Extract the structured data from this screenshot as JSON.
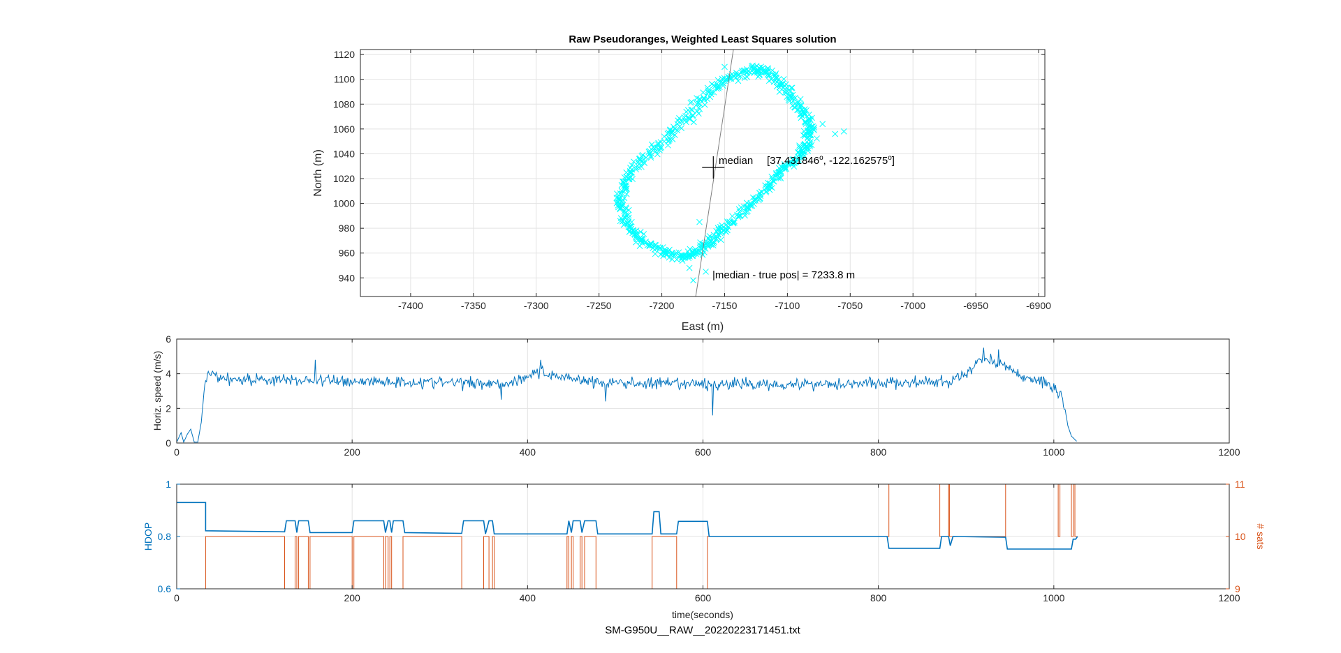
{
  "figure_caption": "SM-G950U__RAW__20220223171451.txt",
  "colors": {
    "scatter": "#00FFFF",
    "speed": "#0072BD",
    "hdop": "#0072BD",
    "sats": "#D95319",
    "grid": "#e3e3e3",
    "axis": "#262626"
  },
  "chart_data": [
    {
      "type": "scatter",
      "title": "Raw Pseudoranges, Weighted Least Squares solution",
      "xlabel": "East (m)",
      "ylabel": "North (m)",
      "xlim": [
        -7440,
        -6895
      ],
      "ylim": [
        925,
        1124
      ],
      "xticks": [
        -7400,
        -7350,
        -7300,
        -7250,
        -7200,
        -7150,
        -7100,
        -7050,
        -7000,
        -6950,
        -6900
      ],
      "yticks": [
        940,
        960,
        980,
        1000,
        1020,
        1040,
        1060,
        1080,
        1100,
        1120
      ],
      "grid": true,
      "marker": "x",
      "track_outline": [
        [
          -7148,
          1100
        ],
        [
          -7130,
          1108
        ],
        [
          -7115,
          1105
        ],
        [
          -7103,
          1094
        ],
        [
          -7092,
          1080
        ],
        [
          -7083,
          1066
        ],
        [
          -7082,
          1053
        ],
        [
          -7088,
          1042
        ],
        [
          -7100,
          1030
        ],
        [
          -7112,
          1017
        ],
        [
          -7128,
          1000
        ],
        [
          -7145,
          985
        ],
        [
          -7158,
          972
        ],
        [
          -7170,
          962
        ],
        [
          -7183,
          957
        ],
        [
          -7200,
          961
        ],
        [
          -7216,
          970
        ],
        [
          -7228,
          983
        ],
        [
          -7233,
          1000
        ],
        [
          -7229,
          1017
        ],
        [
          -7217,
          1035
        ],
        [
          -7198,
          1050
        ],
        [
          -7180,
          1068
        ],
        [
          -7165,
          1087
        ],
        [
          -7148,
          1100
        ]
      ],
      "outliers": [
        [
          -7055,
          1058
        ],
        [
          -7062,
          1056
        ],
        [
          -7072,
          1064
        ],
        [
          -7175,
          938
        ],
        [
          -7178,
          948
        ],
        [
          -7165,
          945
        ],
        [
          -7155,
          975
        ],
        [
          -7150,
          1110
        ],
        [
          -7170,
          985
        ]
      ],
      "reference_line": [
        [
          -7173,
          925
        ],
        [
          -7143,
          1124
        ]
      ],
      "median_marker": {
        "x": -7159,
        "y": 1029,
        "label": "median",
        "coords": "[37.431846",
        "lat_deg": "o",
        "lon": ", -122.162575",
        "lon_deg": "o",
        "close": "]"
      },
      "annotation": "|median - true pos| = 7233.8 m"
    },
    {
      "type": "line",
      "xlabel": "",
      "ylabel": "Horiz. speed (m/s)",
      "xlim": [
        0,
        1200
      ],
      "ylim": [
        0,
        6
      ],
      "xticks": [
        0,
        200,
        400,
        600,
        800,
        1000,
        1200
      ],
      "yticks": [
        0,
        2,
        4,
        6
      ],
      "grid": true,
      "series": [
        {
          "profile_points": [
            [
              0,
              0.05
            ],
            [
              5,
              0.6
            ],
            [
              8,
              0.05
            ],
            [
              12,
              0.5
            ],
            [
              16,
              0.8
            ],
            [
              20,
              0.05
            ],
            [
              24,
              0.05
            ],
            [
              28,
              1.2
            ],
            [
              32,
              3.4
            ],
            [
              36,
              4.0
            ],
            [
              60,
              3.7
            ],
            [
              160,
              3.6
            ],
            [
              300,
              3.5
            ],
            [
              380,
              3.45
            ],
            [
              410,
              4.1
            ],
            [
              420,
              4.0
            ],
            [
              480,
              3.5
            ],
            [
              560,
              3.4
            ],
            [
              700,
              3.4
            ],
            [
              880,
              3.5
            ],
            [
              905,
              4.1
            ],
            [
              915,
              4.9
            ],
            [
              930,
              4.8
            ],
            [
              945,
              4.4
            ],
            [
              960,
              3.9
            ],
            [
              990,
              3.5
            ],
            [
              1000,
              3.2
            ],
            [
              1008,
              2.8
            ],
            [
              1012,
              2.2
            ],
            [
              1016,
              1.0
            ],
            [
              1020,
              0.4
            ],
            [
              1026,
              0.1
            ]
          ]
        }
      ]
    },
    {
      "type": "line",
      "xlabel": "time(seconds)",
      "ylabel": "HDOP",
      "ylabel_right": "# sats",
      "xlim": [
        0,
        1200
      ],
      "ylim": [
        0.6,
        1
      ],
      "ylim_right": [
        9,
        11
      ],
      "xticks": [
        0,
        200,
        400,
        600,
        800,
        1000,
        1200
      ],
      "yticks": [
        0.6,
        0.8,
        1
      ],
      "yticks_right": [
        9,
        10,
        11
      ],
      "grid": true,
      "series": [
        {
          "axis": "left",
          "points": [
            [
              0,
              0.93
            ],
            [
              33,
              0.93
            ],
            [
              33,
              0.822
            ],
            [
              123,
              0.818
            ],
            [
              125,
              0.86
            ],
            [
              135,
              0.86
            ],
            [
              137,
              0.815
            ],
            [
              139,
              0.86
            ],
            [
              150,
              0.86
            ],
            [
              152,
              0.815
            ],
            [
              200,
              0.815
            ],
            [
              202,
              0.86
            ],
            [
              236,
              0.86
            ],
            [
              238,
              0.815
            ],
            [
              241,
              0.86
            ],
            [
              243,
              0.86
            ],
            [
              245,
              0.815
            ],
            [
              247,
              0.86
            ],
            [
              258,
              0.86
            ],
            [
              260,
              0.815
            ],
            [
              325,
              0.812
            ],
            [
              327,
              0.86
            ],
            [
              350,
              0.86
            ],
            [
              352,
              0.81
            ],
            [
              356,
              0.86
            ],
            [
              360,
              0.86
            ],
            [
              362,
              0.81
            ],
            [
              445,
              0.81
            ],
            [
              447,
              0.86
            ],
            [
              450,
              0.815
            ],
            [
              452,
              0.86
            ],
            [
              460,
              0.86
            ],
            [
              462,
              0.815
            ],
            [
              465,
              0.86
            ],
            [
              478,
              0.86
            ],
            [
              480,
              0.81
            ],
            [
              542,
              0.81
            ],
            [
              544,
              0.895
            ],
            [
              550,
              0.895
            ],
            [
              552,
              0.81
            ],
            [
              570,
              0.81
            ],
            [
              572,
              0.858
            ],
            [
              605,
              0.858
            ],
            [
              607,
              0.8
            ],
            [
              810,
              0.8
            ],
            [
              812,
              0.755
            ],
            [
              870,
              0.755
            ],
            [
              872,
              0.8
            ],
            [
              880,
              0.8
            ],
            [
              882,
              0.765
            ],
            [
              885,
              0.8
            ],
            [
              945,
              0.797
            ],
            [
              947,
              0.752
            ],
            [
              1020,
              0.752
            ],
            [
              1022,
              0.79
            ],
            [
              1025,
              0.79
            ],
            [
              1027,
              0.8
            ]
          ]
        },
        {
          "axis": "right",
          "points": [
            [
              0,
              9
            ],
            [
              33,
              9
            ],
            [
              33,
              10
            ],
            [
              123,
              10
            ],
            [
              123,
              9
            ],
            [
              135,
              9
            ],
            [
              135,
              10
            ],
            [
              137,
              10
            ],
            [
              137,
              9
            ],
            [
              139,
              9
            ],
            [
              139,
              10
            ],
            [
              150,
              10
            ],
            [
              150,
              9
            ],
            [
              152,
              9
            ],
            [
              152,
              10
            ],
            [
              200,
              10
            ],
            [
              200,
              9
            ],
            [
              202,
              9
            ],
            [
              202,
              10
            ],
            [
              236,
              10
            ],
            [
              236,
              9
            ],
            [
              238,
              9
            ],
            [
              238,
              10
            ],
            [
              241,
              10
            ],
            [
              241,
              9
            ],
            [
              243,
              9
            ],
            [
              243,
              10
            ],
            [
              245,
              10
            ],
            [
              245,
              9
            ],
            [
              258,
              9
            ],
            [
              258,
              10
            ],
            [
              325,
              10
            ],
            [
              325,
              9
            ],
            [
              350,
              9
            ],
            [
              350,
              10
            ],
            [
              356,
              10
            ],
            [
              356,
              9
            ],
            [
              360,
              9
            ],
            [
              360,
              10
            ],
            [
              362,
              10
            ],
            [
              362,
              9
            ],
            [
              445,
              9
            ],
            [
              445,
              10
            ],
            [
              447,
              10
            ],
            [
              447,
              9
            ],
            [
              450,
              9
            ],
            [
              450,
              10
            ],
            [
              452,
              10
            ],
            [
              452,
              9
            ],
            [
              460,
              9
            ],
            [
              460,
              10
            ],
            [
              462,
              10
            ],
            [
              462,
              9
            ],
            [
              465,
              9
            ],
            [
              465,
              10
            ],
            [
              478,
              10
            ],
            [
              478,
              9
            ],
            [
              542,
              9
            ],
            [
              542,
              10
            ],
            [
              570,
              10
            ],
            [
              570,
              9
            ],
            [
              605,
              9
            ],
            [
              605,
              10
            ],
            [
              812,
              10
            ],
            [
              812,
              11
            ],
            [
              870,
              11
            ],
            [
              870,
              10
            ],
            [
              880,
              10
            ],
            [
              880,
              11
            ],
            [
              881,
              11
            ],
            [
              881,
              10
            ],
            [
              945,
              10
            ],
            [
              945,
              11
            ],
            [
              1005,
              11
            ],
            [
              1005,
              10
            ],
            [
              1007,
              10
            ],
            [
              1007,
              11
            ],
            [
              1020,
              11
            ],
            [
              1020,
              10
            ],
            [
              1022,
              10
            ],
            [
              1022,
              11
            ],
            [
              1024,
              11
            ],
            [
              1024,
              10
            ],
            [
              1027,
              10
            ]
          ]
        }
      ]
    }
  ]
}
